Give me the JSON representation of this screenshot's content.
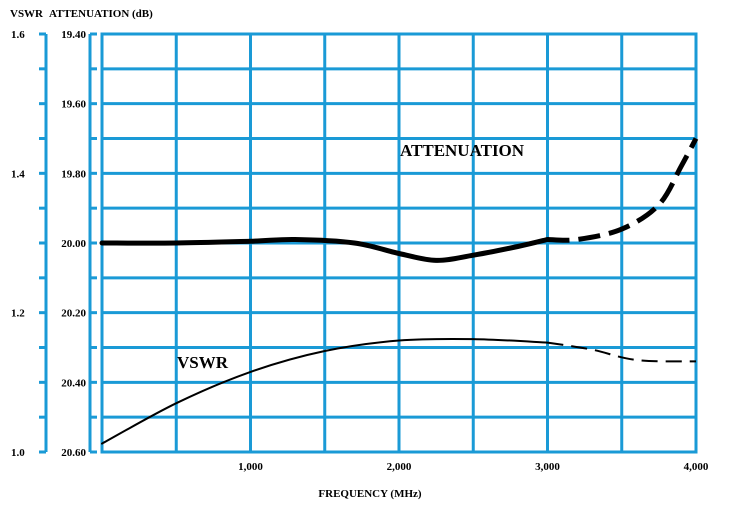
{
  "chart_data": {
    "type": "line",
    "title": "",
    "left_axis_label": "VSWR",
    "right_axis_label": "ATTENUATION (dB)",
    "xlabel": "FREQUENCY (MHz)",
    "xlim": [
      0,
      4000
    ],
    "x_ticks": [
      "1,000",
      "2,000",
      "3,000",
      "4,000"
    ],
    "vswr_axis": {
      "ylim": [
        1.0,
        1.6
      ],
      "ticks": [
        "1.6",
        "1.4",
        "1.2",
        "1.0"
      ]
    },
    "attenuation_axis": {
      "ylim": [
        19.4,
        20.6
      ],
      "inverted": true,
      "ticks": [
        "19.40",
        "19.60",
        "19.80",
        "20.00",
        "20.20",
        "20.40",
        "20.60"
      ]
    },
    "grid": true,
    "grid_color": "#1a9ad6",
    "series": [
      {
        "name": "ATTENUATION",
        "axis": "attenuation",
        "style": "thick",
        "points_solid": [
          [
            0,
            20.0
          ],
          [
            500,
            20.0
          ],
          [
            1000,
            19.995
          ],
          [
            1300,
            19.99
          ],
          [
            1700,
            20.0
          ],
          [
            2000,
            20.03
          ],
          [
            2250,
            20.05
          ],
          [
            2500,
            20.035
          ],
          [
            2800,
            20.01
          ],
          [
            3000,
            19.99
          ]
        ],
        "points_dashed": [
          [
            3000,
            19.99
          ],
          [
            3200,
            19.99
          ],
          [
            3500,
            19.96
          ],
          [
            3750,
            19.89
          ],
          [
            3900,
            19.78
          ],
          [
            4000,
            19.7
          ]
        ]
      },
      {
        "name": "VSWR",
        "axis": "vswr",
        "style": "thin",
        "points_solid": [
          [
            0,
            1.012
          ],
          [
            500,
            1.07
          ],
          [
            1000,
            1.115
          ],
          [
            1500,
            1.145
          ],
          [
            2000,
            1.16
          ],
          [
            2500,
            1.162
          ],
          [
            3000,
            1.157
          ]
        ],
        "points_dashed": [
          [
            3000,
            1.157
          ],
          [
            3300,
            1.147
          ],
          [
            3600,
            1.132
          ],
          [
            4000,
            1.13
          ]
        ]
      }
    ]
  }
}
